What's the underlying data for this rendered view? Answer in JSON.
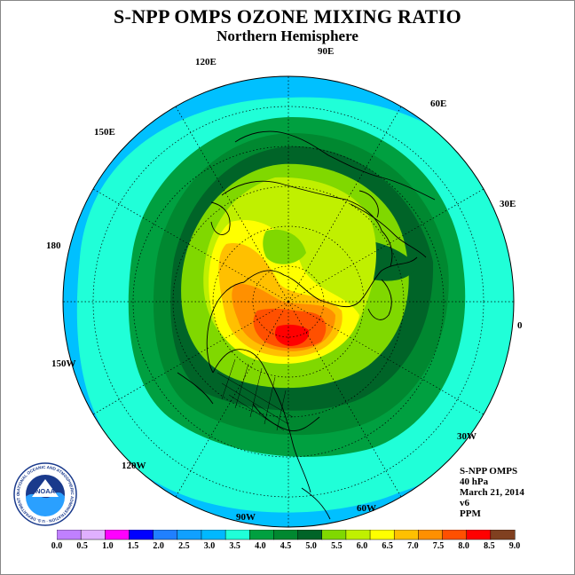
{
  "title": "S-NPP OMPS OZONE MIXING RATIO",
  "subtitle": "Northern Hemisphere",
  "info": {
    "instrument": "S-NPP OMPS",
    "level": "40 hPa",
    "date": "March 21, 2014",
    "version": "v6",
    "units": "PPM"
  },
  "longitude_labels": [
    "90E",
    "60E",
    "30E",
    "0",
    "30W",
    "60W",
    "90W",
    "120W",
    "150W",
    "180",
    "150E",
    "120E"
  ],
  "colorbar": {
    "ticks": [
      "0.0",
      "0.5",
      "1.0",
      "1.5",
      "2.0",
      "2.5",
      "3.0",
      "3.5",
      "4.0",
      "4.5",
      "5.0",
      "5.5",
      "6.0",
      "6.5",
      "7.0",
      "7.5",
      "8.0",
      "8.5",
      "9.0"
    ],
    "colors": [
      "#c080ff",
      "#e0b0ff",
      "#ff00ff",
      "#0000ff",
      "#2080ff",
      "#10a0ff",
      "#00b8ff",
      "#20ffd8",
      "#00a040",
      "#008830",
      "#006428",
      "#80d800",
      "#c0f000",
      "#ffff00",
      "#ffc000",
      "#ff9000",
      "#ff5000",
      "#ff0000",
      "#804020"
    ]
  },
  "logo": {
    "text": "NOAA",
    "ring": "NATIONAL OCEANIC AND ATMOSPHERIC ADMINISTRATION · U.S. DEPARTMENT OF COMMERCE"
  },
  "colors": {
    "ocean_outer": "#00c0ff",
    "ring_light": "#20ffd8",
    "ring_green": "#00a040",
    "ring_dark": "#006428"
  }
}
